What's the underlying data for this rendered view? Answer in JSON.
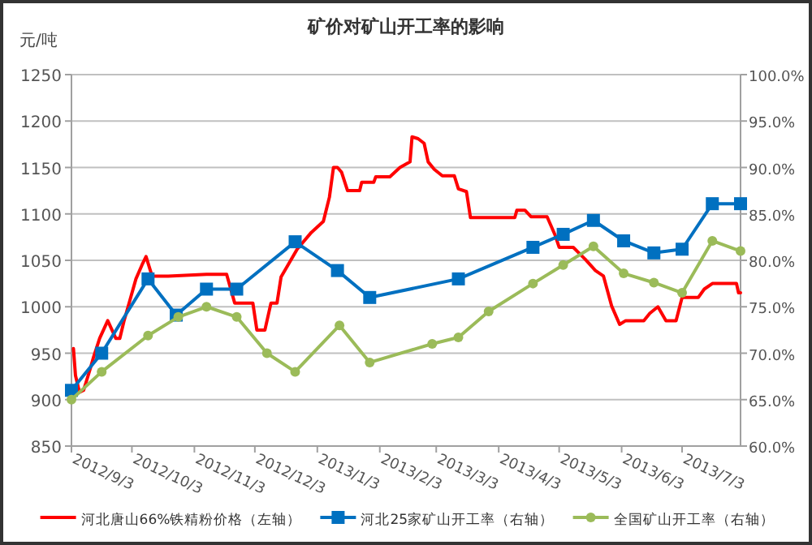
{
  "chart_data": {
    "type": "line",
    "title": "矿价对矿山开工率的影响",
    "ylabel": "元/吨",
    "xlim": [
      "2012-09-03",
      "2013-08-01"
    ],
    "xticks": [
      {
        "value": "2012-09-03",
        "label": "2012/9/3"
      },
      {
        "value": "2012-10-03",
        "label": "2012/10/3"
      },
      {
        "value": "2012-11-03",
        "label": "2012/11/3"
      },
      {
        "value": "2012-12-03",
        "label": "2012/12/3"
      },
      {
        "value": "2013-01-03",
        "label": "2013/1/3"
      },
      {
        "value": "2013-02-03",
        "label": "2013/2/3"
      },
      {
        "value": "2013-03-03",
        "label": "2013/3/3"
      },
      {
        "value": "2013-04-03",
        "label": "2013/4/3"
      },
      {
        "value": "2013-05-03",
        "label": "2013/5/3"
      },
      {
        "value": "2013-06-03",
        "label": "2013/6/3"
      },
      {
        "value": "2013-07-03",
        "label": "2013/7/3"
      }
    ],
    "ylim": [
      850,
      1250
    ],
    "yticks": [
      850,
      900,
      950,
      1000,
      1050,
      1100,
      1150,
      1200,
      1250
    ],
    "y2lim": [
      60,
      100
    ],
    "y2ticks": [
      {
        "value": 60,
        "label": "60.0%"
      },
      {
        "value": 65,
        "label": "65.0%"
      },
      {
        "value": 70,
        "label": "70.0%"
      },
      {
        "value": 75,
        "label": "75.0%"
      },
      {
        "value": 80,
        "label": "80.0%"
      },
      {
        "value": 85,
        "label": "85.0%"
      },
      {
        "value": 90,
        "label": "90.0%"
      },
      {
        "value": 95,
        "label": "95.0%"
      },
      {
        "value": 100,
        "label": "100.0%"
      }
    ],
    "grid": "y",
    "legend": "bottom",
    "series": [
      {
        "name": "河北唐山66%铁精粉价格（左轴）",
        "color": "#ff0000",
        "marker": "none",
        "x": [
          "2012-09-04",
          "2012-09-05",
          "2012-09-07",
          "2012-09-09",
          "2012-09-12",
          "2012-09-14",
          "2012-09-17",
          "2012-09-21",
          "2012-09-25",
          "2012-09-27",
          "2012-09-29",
          "2012-10-02",
          "2012-10-05",
          "2012-10-08",
          "2012-10-10",
          "2012-10-13",
          "2012-10-21",
          "2012-11-09",
          "2012-11-19",
          "2012-11-23",
          "2012-12-02",
          "2012-12-04",
          "2012-12-08",
          "2012-12-11",
          "2012-12-14",
          "2012-12-16",
          "2012-12-24",
          "2012-12-31",
          "2013-01-06",
          "2013-01-09",
          "2013-01-11",
          "2013-01-13",
          "2013-01-15",
          "2013-01-18",
          "2013-01-24",
          "2013-01-25",
          "2013-01-31",
          "2013-02-01",
          "2013-02-08",
          "2013-02-13",
          "2013-02-18",
          "2013-02-19",
          "2013-02-22",
          "2013-02-25",
          "2013-02-27",
          "2013-03-02",
          "2013-03-06",
          "2013-03-12",
          "2013-03-14",
          "2013-03-18",
          "2013-03-20",
          "2013-04-11",
          "2013-04-12",
          "2013-04-16",
          "2013-04-19",
          "2013-04-27",
          "2013-05-01",
          "2013-05-03",
          "2013-05-10",
          "2013-05-16",
          "2013-05-21",
          "2013-05-25",
          "2013-05-29",
          "2013-06-02",
          "2013-06-05",
          "2013-06-14",
          "2013-06-17",
          "2013-06-21",
          "2013-06-25",
          "2013-06-30",
          "2013-07-03",
          "2013-07-11",
          "2013-07-14",
          "2013-07-18",
          "2013-07-30",
          "2013-07-31",
          "2013-08-01"
        ],
        "values": [
          955,
          926,
          908,
          910,
          931,
          946,
          966,
          985,
          966,
          966,
          984,
          1007,
          1030,
          1045,
          1054,
          1033,
          1033,
          1035,
          1035,
          1004,
          1004,
          975,
          975,
          1004,
          1004,
          1032,
          1062,
          1080,
          1092,
          1118,
          1150,
          1150,
          1145,
          1125,
          1125,
          1134,
          1134,
          1140,
          1140,
          1150,
          1156,
          1183,
          1181,
          1176,
          1156,
          1148,
          1141,
          1141,
          1127,
          1124,
          1096,
          1096,
          1104,
          1104,
          1097,
          1097,
          1077,
          1064,
          1064,
          1051,
          1039,
          1033,
          1001,
          981,
          985,
          985,
          993,
          1000,
          985,
          985,
          1010,
          1010,
          1019,
          1025,
          1025,
          1015,
          1015
        ]
      },
      {
        "name": "河北25家矿山开工率（右轴）",
        "color": "#0070c0",
        "marker": "square",
        "axis": "y2",
        "x": [
          "2012-09-03",
          "2012-09-18",
          "2012-10-11",
          "2012-10-25",
          "2012-11-09",
          "2012-11-24",
          "2012-12-23",
          "2013-01-13",
          "2013-01-29",
          "2013-03-14",
          "2013-04-20",
          "2013-05-05",
          "2013-05-20",
          "2013-06-04",
          "2013-06-19",
          "2013-07-03",
          "2013-07-18",
          "2013-08-01"
        ],
        "values": [
          66,
          70,
          78,
          74.1,
          76.9,
          76.9,
          82,
          78.9,
          76,
          78,
          81.4,
          82.8,
          84.3,
          82.1,
          80.8,
          81.2,
          86.1,
          86.1
        ]
      },
      {
        "name": "全国矿山开工率（右轴）",
        "color": "#9bbb59",
        "marker": "circle",
        "axis": "y2",
        "x": [
          "2012-09-03",
          "2012-09-18",
          "2012-10-11",
          "2012-10-26",
          "2012-11-09",
          "2012-11-24",
          "2012-12-09",
          "2012-12-23",
          "2013-01-14",
          "2013-01-29",
          "2013-03-01",
          "2013-03-14",
          "2013-03-29",
          "2013-04-20",
          "2013-05-05",
          "2013-05-20",
          "2013-06-04",
          "2013-06-19",
          "2013-07-03",
          "2013-07-18",
          "2013-08-01"
        ],
        "values": [
          65,
          68,
          71.9,
          73.9,
          75,
          73.9,
          70,
          68,
          73,
          69,
          71,
          71.7,
          74.5,
          77.5,
          79.5,
          81.5,
          78.6,
          77.6,
          76.5,
          82.1,
          81
        ]
      }
    ]
  }
}
